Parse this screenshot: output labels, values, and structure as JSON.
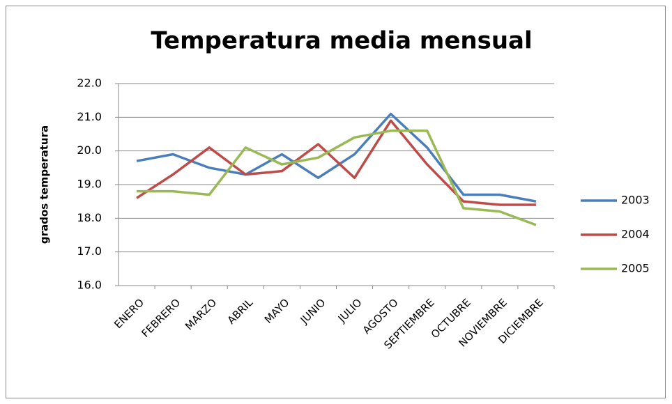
{
  "chart_data": {
    "type": "line",
    "title": "Temperatura media mensual",
    "y_label": "grados temperatura",
    "categories": [
      "ENERO",
      "FEBRERO",
      "MARZO",
      "ABRIL",
      "MAYO",
      "JUNIO",
      "JULIO",
      "AGOSTO",
      "SEPTIEMBRE",
      "OCTUBRE",
      "NOVIEMBRE",
      "DICIEMBRE"
    ],
    "series": [
      {
        "name": "2003",
        "color": "#4a7ebb",
        "values": [
          19.7,
          19.9,
          19.5,
          19.3,
          19.9,
          19.2,
          19.9,
          21.1,
          20.1,
          18.7,
          18.7,
          18.5
        ]
      },
      {
        "name": "2004",
        "color": "#be4b48",
        "values": [
          18.6,
          19.3,
          20.1,
          19.3,
          19.4,
          20.2,
          19.2,
          20.9,
          19.6,
          18.5,
          18.4,
          18.4
        ]
      },
      {
        "name": "2005",
        "color": "#98b954",
        "values": [
          18.8,
          18.8,
          18.7,
          20.1,
          19.6,
          19.8,
          20.4,
          20.6,
          20.6,
          18.3,
          18.2,
          17.8
        ]
      }
    ],
    "ylim": [
      16,
      22
    ],
    "yticks": [
      {
        "value": 16,
        "label": "16.0"
      },
      {
        "value": 17,
        "label": "17.0"
      },
      {
        "value": 18,
        "label": "18.0"
      },
      {
        "value": 19,
        "label": "19.0"
      },
      {
        "value": 20,
        "label": "20.0"
      },
      {
        "value": 21,
        "label": "21.0"
      },
      {
        "value": 22,
        "label": "22.0"
      }
    ],
    "grid": true,
    "legend": "right"
  }
}
